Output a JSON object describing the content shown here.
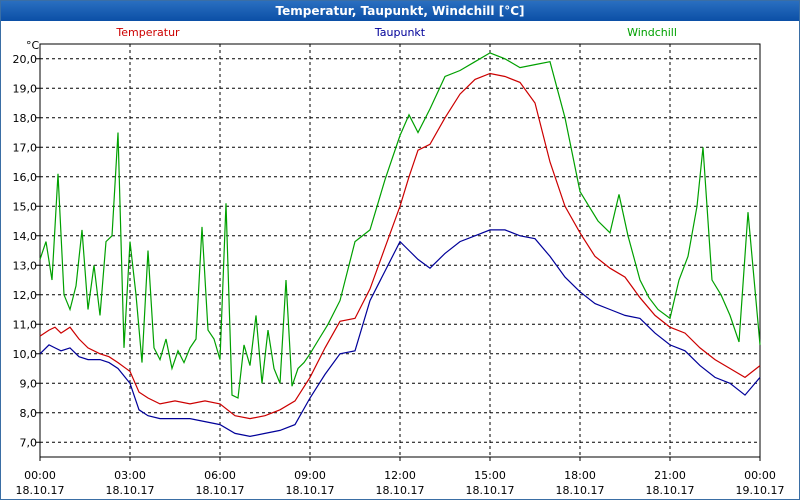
{
  "chart_data": {
    "type": "line",
    "title": "Temperatur, Taupunkt, Windchill [°C]",
    "ylabel": "°C",
    "ylim": [
      6.5,
      20.5
    ],
    "xlim": [
      0,
      24
    ],
    "y_ticks": [
      "7,0",
      "8,0",
      "9,0",
      "10,0",
      "11,0",
      "12,0",
      "13,0",
      "14,0",
      "15,0",
      "16,0",
      "17,0",
      "18,0",
      "19,0",
      "20,0"
    ],
    "x_ticks": [
      {
        "time": "00:00",
        "date": "18.10.17"
      },
      {
        "time": "03:00",
        "date": "18.10.17"
      },
      {
        "time": "06:00",
        "date": "18.10.17"
      },
      {
        "time": "09:00",
        "date": "18.10.17"
      },
      {
        "time": "12:00",
        "date": "18.10.17"
      },
      {
        "time": "15:00",
        "date": "18.10.17"
      },
      {
        "time": "18:00",
        "date": "18.10.17"
      },
      {
        "time": "21:00",
        "date": "18.10.17"
      },
      {
        "time": "00:00",
        "date": "19.10.17"
      }
    ],
    "series": [
      {
        "name": "Temperatur",
        "color": "#cc0000",
        "x": [
          0,
          0.3,
          0.5,
          0.7,
          1,
          1.3,
          1.6,
          2,
          2.3,
          2.6,
          3,
          3.3,
          3.6,
          4,
          4.5,
          5,
          5.5,
          6,
          6.5,
          7,
          7.5,
          8,
          8.5,
          9,
          9.5,
          10,
          10.5,
          11,
          11.5,
          12,
          12.3,
          12.6,
          13,
          13.5,
          14,
          14.5,
          15,
          15.5,
          16,
          16.5,
          17,
          17.5,
          18,
          18.5,
          19,
          19.5,
          20,
          20.5,
          21,
          21.5,
          22,
          22.5,
          23,
          23.5,
          24
        ],
        "values": [
          10.6,
          10.8,
          10.9,
          10.7,
          10.9,
          10.5,
          10.2,
          10.0,
          9.9,
          9.7,
          9.4,
          8.7,
          8.5,
          8.3,
          8.4,
          8.3,
          8.4,
          8.3,
          7.9,
          7.8,
          7.9,
          8.1,
          8.4,
          9.2,
          10.2,
          11.1,
          11.2,
          12.2,
          13.6,
          15.0,
          16.0,
          16.9,
          17.1,
          18.0,
          18.8,
          19.3,
          19.5,
          19.4,
          19.2,
          18.5,
          16.5,
          15.0,
          14.1,
          13.3,
          12.9,
          12.6,
          11.9,
          11.3,
          10.9,
          10.7,
          10.2,
          9.8,
          9.5,
          9.2,
          9.6
        ]
      },
      {
        "name": "Taupunkt",
        "color": "#000099",
        "x": [
          0,
          0.3,
          0.5,
          0.7,
          1,
          1.3,
          1.6,
          2,
          2.3,
          2.6,
          3,
          3.3,
          3.6,
          4,
          4.5,
          5,
          5.5,
          6,
          6.5,
          7,
          7.5,
          8,
          8.5,
          9,
          9.5,
          10,
          10.5,
          11,
          11.5,
          12,
          12.3,
          12.6,
          13,
          13.5,
          14,
          14.5,
          15,
          15.5,
          16,
          16.5,
          17,
          17.5,
          18,
          18.5,
          19,
          19.5,
          20,
          20.5,
          21,
          21.5,
          22,
          22.5,
          23,
          23.5,
          24
        ],
        "values": [
          10.0,
          10.3,
          10.2,
          10.1,
          10.2,
          9.9,
          9.8,
          9.8,
          9.7,
          9.5,
          9.0,
          8.1,
          7.9,
          7.8,
          7.8,
          7.8,
          7.7,
          7.6,
          7.3,
          7.2,
          7.3,
          7.4,
          7.6,
          8.5,
          9.3,
          10.0,
          10.1,
          11.8,
          12.8,
          13.8,
          13.5,
          13.2,
          12.9,
          13.4,
          13.8,
          14.0,
          14.2,
          14.2,
          14.0,
          13.9,
          13.3,
          12.6,
          12.1,
          11.7,
          11.5,
          11.3,
          11.2,
          10.7,
          10.3,
          10.1,
          9.6,
          9.2,
          9.0,
          8.6,
          9.2
        ]
      },
      {
        "name": "Windchill",
        "color": "#00a000",
        "x": [
          0,
          0.2,
          0.4,
          0.6,
          0.8,
          1,
          1.2,
          1.4,
          1.6,
          1.8,
          2,
          2.2,
          2.4,
          2.6,
          2.8,
          3,
          3.2,
          3.4,
          3.6,
          3.8,
          4,
          4.2,
          4.4,
          4.6,
          4.8,
          5,
          5.2,
          5.4,
          5.6,
          5.8,
          6,
          6.2,
          6.4,
          6.6,
          6.8,
          7,
          7.2,
          7.4,
          7.6,
          7.8,
          8,
          8.2,
          8.4,
          8.6,
          8.8,
          9,
          9.3,
          9.6,
          10,
          10.5,
          11,
          11.5,
          12,
          12.3,
          12.6,
          13,
          13.5,
          14,
          14.5,
          15,
          15.5,
          16,
          16.5,
          17,
          17.5,
          18,
          18.3,
          18.6,
          19,
          19.3,
          19.6,
          20,
          20.3,
          20.6,
          21,
          21.3,
          21.6,
          21.9,
          22.1,
          22.4,
          22.7,
          23,
          23.3,
          23.6,
          24
        ],
        "values": [
          13.2,
          13.8,
          12.5,
          16.1,
          12.0,
          11.5,
          12.3,
          14.2,
          11.5,
          13.0,
          11.3,
          13.8,
          14.0,
          17.5,
          10.2,
          13.8,
          12.0,
          9.7,
          13.5,
          10.2,
          9.8,
          10.5,
          9.5,
          10.1,
          9.7,
          10.2,
          10.5,
          14.3,
          10.8,
          10.5,
          9.8,
          15.1,
          8.6,
          8.5,
          10.3,
          9.6,
          11.3,
          9.0,
          10.8,
          9.5,
          9.0,
          12.5,
          8.9,
          9.5,
          9.7,
          10.0,
          10.5,
          11.0,
          11.8,
          13.8,
          14.2,
          15.9,
          17.4,
          18.1,
          17.5,
          18.3,
          19.4,
          19.6,
          19.9,
          20.2,
          20.0,
          19.7,
          19.8,
          19.9,
          18.0,
          15.5,
          15.0,
          14.5,
          14.1,
          15.4,
          14.0,
          12.5,
          11.9,
          11.5,
          11.2,
          12.5,
          13.3,
          15.0,
          17.0,
          12.5,
          12.0,
          11.3,
          10.4,
          14.8,
          10.3
        ]
      }
    ]
  }
}
